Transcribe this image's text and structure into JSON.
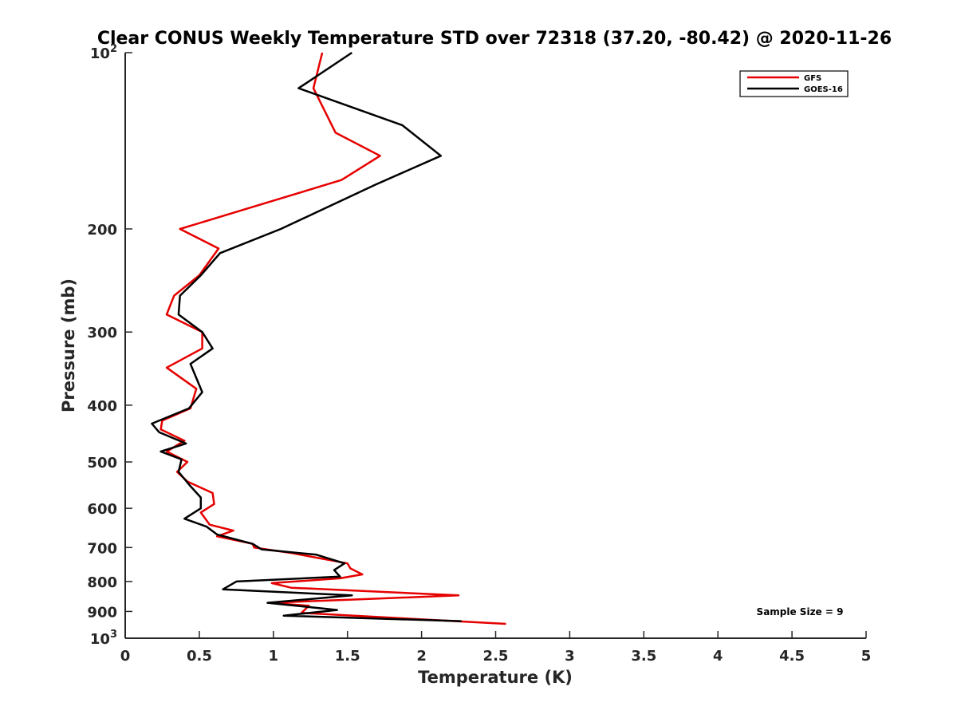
{
  "chart_data": {
    "type": "line",
    "title": "Clear CONUS Weekly Temperature STD over 72318 (37.20, -80.42) @ 2020-11-26",
    "xlabel": "Temperature (K)",
    "ylabel": "Pressure (mb)",
    "xlim": [
      0,
      5
    ],
    "ylim": [
      100,
      1000
    ],
    "y_scale": "log",
    "y_reversed": true,
    "x_ticks": [
      0,
      0.5,
      1,
      1.5,
      2,
      2.5,
      3,
      3.5,
      4,
      4.5,
      5
    ],
    "x_tick_labels": [
      "0",
      "0.5",
      "1",
      "1.5",
      "2",
      "2.5",
      "3",
      "3.5",
      "4",
      "4.5",
      "5"
    ],
    "y_ticks": [
      100,
      200,
      300,
      400,
      500,
      600,
      700,
      800,
      900,
      1000
    ],
    "y_tick_labels": [
      "10^2",
      "200",
      "300",
      "400",
      "500",
      "600",
      "700",
      "800",
      "900",
      "10^3"
    ],
    "grid": false,
    "legend_position": "top-right",
    "annotation": "Sample Size = 9",
    "series": [
      {
        "name": "GFS",
        "color": "#e60000",
        "points": [
          [
            1.33,
            100
          ],
          [
            1.27,
            115
          ],
          [
            1.42,
            137
          ],
          [
            1.72,
            150
          ],
          [
            1.46,
            165
          ],
          [
            0.37,
            200
          ],
          [
            0.63,
            216
          ],
          [
            0.5,
            240
          ],
          [
            0.33,
            260
          ],
          [
            0.28,
            280
          ],
          [
            0.52,
            300
          ],
          [
            0.52,
            320
          ],
          [
            0.28,
            345
          ],
          [
            0.48,
            375
          ],
          [
            0.44,
            405
          ],
          [
            0.25,
            425
          ],
          [
            0.24,
            440
          ],
          [
            0.4,
            460
          ],
          [
            0.28,
            480
          ],
          [
            0.42,
            500
          ],
          [
            0.35,
            520
          ],
          [
            0.42,
            540
          ],
          [
            0.59,
            565
          ],
          [
            0.6,
            590
          ],
          [
            0.51,
            610
          ],
          [
            0.57,
            640
          ],
          [
            0.73,
            655
          ],
          [
            0.62,
            670
          ],
          [
            0.86,
            690
          ],
          [
            0.87,
            700
          ],
          [
            1.12,
            715
          ],
          [
            1.5,
            745
          ],
          [
            1.52,
            760
          ],
          [
            1.6,
            778
          ],
          [
            1.45,
            790
          ],
          [
            0.99,
            805
          ],
          [
            1.12,
            820
          ],
          [
            2.25,
            845
          ],
          [
            1.58,
            858
          ],
          [
            0.97,
            870
          ],
          [
            1.24,
            880
          ],
          [
            1.19,
            905
          ],
          [
            2.57,
            945
          ]
        ]
      },
      {
        "name": "GOES-16",
        "color": "#000000",
        "points": [
          [
            1.53,
            100
          ],
          [
            1.17,
            115
          ],
          [
            1.87,
            133
          ],
          [
            2.13,
            150
          ],
          [
            1.69,
            168
          ],
          [
            1.05,
            200
          ],
          [
            0.64,
            220
          ],
          [
            0.51,
            240
          ],
          [
            0.37,
            260
          ],
          [
            0.36,
            280
          ],
          [
            0.52,
            300
          ],
          [
            0.59,
            320
          ],
          [
            0.44,
            340
          ],
          [
            0.52,
            380
          ],
          [
            0.43,
            405
          ],
          [
            0.18,
            430
          ],
          [
            0.23,
            445
          ],
          [
            0.41,
            465
          ],
          [
            0.24,
            480
          ],
          [
            0.38,
            495
          ],
          [
            0.36,
            520
          ],
          [
            0.44,
            550
          ],
          [
            0.51,
            575
          ],
          [
            0.51,
            600
          ],
          [
            0.4,
            625
          ],
          [
            0.55,
            645
          ],
          [
            0.62,
            665
          ],
          [
            0.86,
            690
          ],
          [
            0.92,
            705
          ],
          [
            1.29,
            720
          ],
          [
            1.48,
            745
          ],
          [
            1.41,
            765
          ],
          [
            1.45,
            785
          ],
          [
            0.75,
            800
          ],
          [
            0.66,
            825
          ],
          [
            1.53,
            845
          ],
          [
            0.96,
            870
          ],
          [
            1.43,
            895
          ],
          [
            1.07,
            915
          ],
          [
            2.27,
            935
          ]
        ]
      }
    ]
  }
}
